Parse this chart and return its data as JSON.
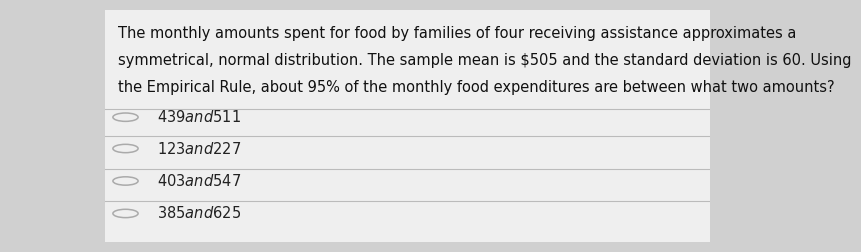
{
  "background_color": "#d0d0d0",
  "card_color": "#efefef",
  "question_text_lines": [
    "The monthly amounts spent for food by families of four receiving assistance approximates a",
    "symmetrical, normal distribution. The sample mean is $505 and the standard deviation is 60. Using",
    "the Empirical Rule, about 95% of the monthly food expenditures are between what two amounts?"
  ],
  "options": [
    "$439 and $511",
    "$123 and $227",
    "$403 and $547",
    "$385 and $625"
  ],
  "text_color": "#111111",
  "option_text_color": "#222222",
  "line_color": "#bbbbbb",
  "circle_color": "#aaaaaa",
  "question_fontsize": 10.5,
  "option_fontsize": 10.5
}
